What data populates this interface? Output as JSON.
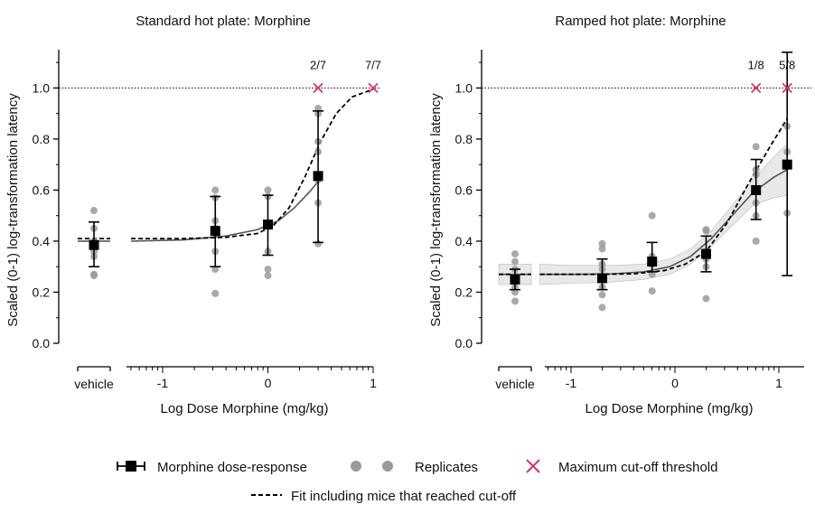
{
  "chart_data": [
    {
      "type": "scatter",
      "title": "Standard hot plate: Morphine",
      "xlabel": "Log Dose Morphine (mg/kg)",
      "ylabel": "Scaled (0-1) log-transformation latency",
      "xlim": [
        -1.5,
        1.05
      ],
      "ylim": [
        0.0,
        1.15
      ],
      "x_ticks": [
        "-1",
        "0",
        "1"
      ],
      "y_ticks": [
        "0.0",
        "0.2",
        "0.4",
        "0.6",
        "0.8",
        "1.0"
      ],
      "vehicle_label": "vehicle",
      "cutoff_line": 1.0,
      "means": [
        {
          "x": "vehicle",
          "y": 0.385,
          "err_low": 0.3,
          "err_high": 0.475
        },
        {
          "x": -0.5,
          "y": 0.44,
          "err_low": 0.3,
          "err_high": 0.575
        },
        {
          "x": 0.0,
          "y": 0.465,
          "err_low": 0.345,
          "err_high": 0.58
        },
        {
          "x": 0.477,
          "y": 0.655,
          "err_low": 0.395,
          "err_high": 0.91
        }
      ],
      "replicates": [
        {
          "x": "vehicle",
          "values": [
            0.52,
            0.45,
            0.4,
            0.36,
            0.34,
            0.27,
            0.265
          ]
        },
        {
          "x": -0.5,
          "values": [
            0.6,
            0.57,
            0.48,
            0.45,
            0.44,
            0.36,
            0.29,
            0.195
          ]
        },
        {
          "x": 0.0,
          "values": [
            0.6,
            0.575,
            0.47,
            0.46,
            0.36,
            0.29,
            0.265
          ]
        },
        {
          "x": 0.477,
          "values": [
            0.92,
            0.9,
            0.79,
            0.75,
            0.64,
            0.55,
            0.39
          ]
        }
      ],
      "cutoff_markers": [
        {
          "x": 0.477,
          "y": 1.0,
          "label": "2/7"
        },
        {
          "x": 1.0,
          "y": 1.0,
          "label": "7/7"
        }
      ],
      "fit_line": [
        [
          -1.3,
          0.4
        ],
        [
          -0.8,
          0.405
        ],
        [
          -0.4,
          0.42
        ],
        [
          -0.1,
          0.445
        ],
        [
          0.1,
          0.48
        ],
        [
          0.25,
          0.53
        ],
        [
          0.4,
          0.595
        ],
        [
          0.48,
          0.635
        ]
      ],
      "fit_vehicle": {
        "y": 0.4
      },
      "fit_cutoff_line": [
        [
          -1.3,
          0.41
        ],
        [
          -0.8,
          0.41
        ],
        [
          -0.4,
          0.415
        ],
        [
          -0.1,
          0.43
        ],
        [
          0.05,
          0.46
        ],
        [
          0.2,
          0.53
        ],
        [
          0.35,
          0.65
        ],
        [
          0.5,
          0.79
        ],
        [
          0.65,
          0.9
        ],
        [
          0.8,
          0.965
        ],
        [
          1.0,
          0.995
        ]
      ],
      "fit_cutoff_vehicle": {
        "y": 0.41
      }
    },
    {
      "type": "scatter",
      "title": "Ramped hot plate: Morphine",
      "xlabel": "Log Dose Morphine (mg/kg)",
      "ylabel": "Scaled (0-1) log-transformation latency",
      "xlim": [
        -1.5,
        1.05
      ],
      "ylim": [
        0.0,
        1.15
      ],
      "x_ticks": [
        "-1",
        "0",
        "1"
      ],
      "y_ticks": [
        "0.0",
        "0.2",
        "0.4",
        "0.6",
        "0.8",
        "1.0"
      ],
      "vehicle_label": "vehicle",
      "cutoff_line": 1.0,
      "means": [
        {
          "x": "vehicle",
          "y": 0.25,
          "err_low": 0.21,
          "err_high": 0.29
        },
        {
          "x": -0.7,
          "y": 0.255,
          "err_low": 0.21,
          "err_high": 0.33
        },
        {
          "x": -0.22,
          "y": 0.32,
          "err_low": 0.28,
          "err_high": 0.395
        },
        {
          "x": 0.3,
          "y": 0.35,
          "err_low": 0.28,
          "err_high": 0.42
        },
        {
          "x": 0.78,
          "y": 0.6,
          "err_low": 0.485,
          "err_high": 0.72
        },
        {
          "x": 1.08,
          "y": 0.7,
          "err_low": 0.265,
          "err_high": 1.14
        }
      ],
      "replicates": [
        {
          "x": "vehicle",
          "values": [
            0.35,
            0.32,
            0.29,
            0.26,
            0.24,
            0.22,
            0.2,
            0.165
          ]
        },
        {
          "x": -0.7,
          "values": [
            0.39,
            0.37,
            0.31,
            0.29,
            0.26,
            0.22,
            0.19,
            0.14
          ]
        },
        {
          "x": -0.22,
          "values": [
            0.5,
            0.34,
            0.32,
            0.31,
            0.27,
            0.205
          ]
        },
        {
          "x": 0.3,
          "values": [
            0.445,
            0.44,
            0.36,
            0.33,
            0.3,
            0.175
          ]
        },
        {
          "x": 0.78,
          "values": [
            0.77,
            0.68,
            0.66,
            0.6,
            0.55,
            0.5,
            0.4
          ]
        },
        {
          "x": 1.08,
          "values": [
            0.85,
            0.75,
            0.7,
            0.51
          ]
        }
      ],
      "cutoff_markers": [
        {
          "x": 0.78,
          "y": 1.0,
          "label": "1/8"
        },
        {
          "x": 1.08,
          "y": 1.0,
          "label": "5/8"
        }
      ],
      "fit_line": [
        [
          -1.3,
          0.27
        ],
        [
          -1.0,
          0.27
        ],
        [
          -0.6,
          0.272
        ],
        [
          -0.3,
          0.28
        ],
        [
          -0.05,
          0.3
        ],
        [
          0.15,
          0.34
        ],
        [
          0.35,
          0.41
        ],
        [
          0.55,
          0.5
        ],
        [
          0.75,
          0.59
        ],
        [
          0.95,
          0.65
        ],
        [
          1.08,
          0.68
        ]
      ],
      "fit_vehicle": {
        "y": 0.27
      },
      "fit_band": {
        "upper": [
          [
            -1.3,
            0.31
          ],
          [
            -1.0,
            0.305
          ],
          [
            -0.6,
            0.305
          ],
          [
            -0.3,
            0.31
          ],
          [
            -0.05,
            0.33
          ],
          [
            0.15,
            0.37
          ],
          [
            0.35,
            0.44
          ],
          [
            0.55,
            0.54
          ],
          [
            0.75,
            0.64
          ],
          [
            0.95,
            0.73
          ],
          [
            1.08,
            0.78
          ]
        ],
        "lower": [
          [
            -1.3,
            0.23
          ],
          [
            -1.0,
            0.235
          ],
          [
            -0.6,
            0.24
          ],
          [
            -0.3,
            0.25
          ],
          [
            -0.05,
            0.27
          ],
          [
            0.15,
            0.31
          ],
          [
            0.35,
            0.38
          ],
          [
            0.55,
            0.46
          ],
          [
            0.75,
            0.54
          ],
          [
            0.95,
            0.57
          ],
          [
            1.08,
            0.58
          ]
        ]
      },
      "fit_cutoff_line": [
        [
          -1.3,
          0.27
        ],
        [
          -0.8,
          0.27
        ],
        [
          -0.4,
          0.272
        ],
        [
          -0.1,
          0.285
        ],
        [
          0.1,
          0.31
        ],
        [
          0.3,
          0.36
        ],
        [
          0.5,
          0.47
        ],
        [
          0.7,
          0.62
        ],
        [
          0.9,
          0.76
        ],
        [
          1.08,
          0.88
        ]
      ],
      "fit_cutoff_vehicle": {
        "y": 0.27
      }
    }
  ],
  "legend": {
    "items": [
      {
        "label": "Morphine dose-response",
        "marker": "square-errorbar"
      },
      {
        "label": "Replicates",
        "marker": "grey-circles"
      },
      {
        "label": "Maximum cut-off threshold",
        "marker": "pink-x"
      },
      {
        "label": "Fit including mice that reached cut-off",
        "marker": "dashed-line"
      }
    ]
  },
  "colors": {
    "mean": "#000000",
    "replicate": "#9a9a9a",
    "cutoff_marker": "#d6336c",
    "band": "#e8e8e8"
  }
}
